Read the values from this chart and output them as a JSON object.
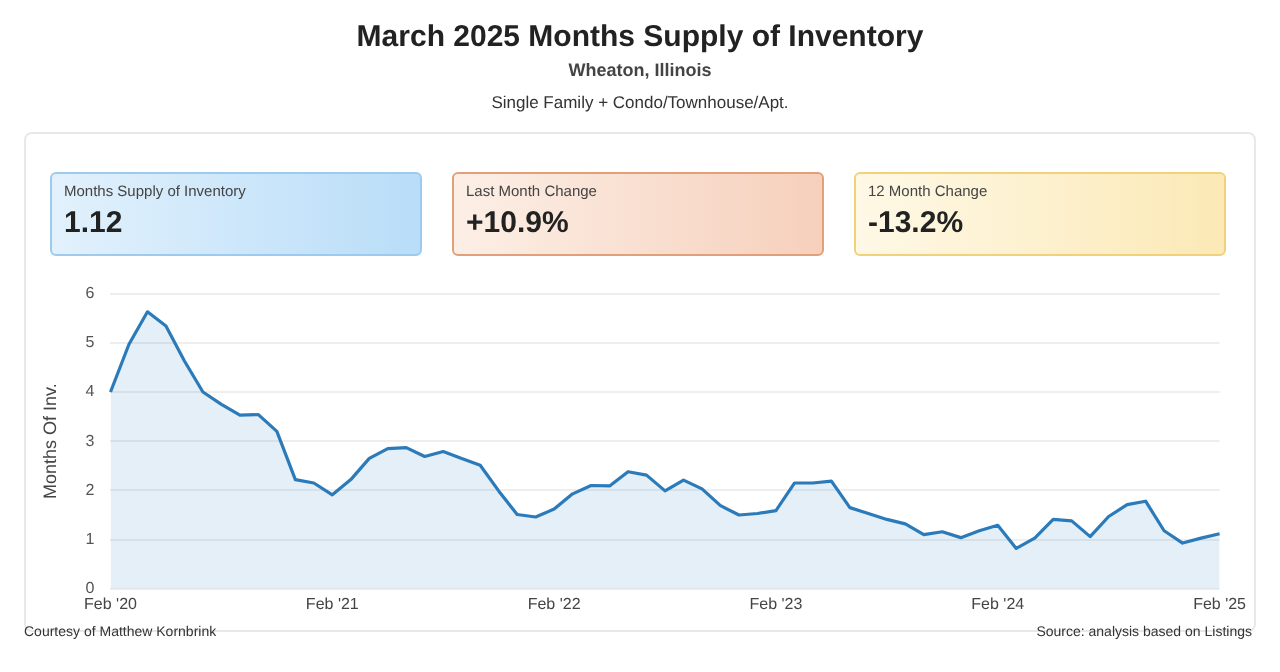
{
  "chart_data": {
    "type": "area",
    "title": "March 2025 Months Supply of Inventory",
    "subtitle": "Wheaton, Illinois",
    "ylabel": "Months Of Inv.",
    "annotations": [
      "Single Family + Condo/Townhouse/Apt.",
      "Months Supply of Inventory",
      "1.12",
      "Last Month Change",
      "+10.9%",
      "12 Month Change",
      "-13.2%",
      "Courtesy of Matthew Kornbrink",
      "Source: analysis based on Listings"
    ],
    "categories": [
      "Feb '20",
      null,
      null,
      null,
      null,
      null,
      null,
      null,
      null,
      null,
      null,
      null,
      "Feb '21",
      null,
      null,
      null,
      null,
      null,
      null,
      null,
      null,
      null,
      null,
      null,
      "Feb '22",
      null,
      null,
      null,
      null,
      null,
      null,
      null,
      null,
      null,
      null,
      null,
      "Feb '23",
      null,
      null,
      null,
      null,
      null,
      null,
      null,
      null,
      null,
      null,
      null,
      "Feb '24",
      null,
      null,
      null,
      null,
      null,
      null,
      null,
      null,
      null,
      null,
      null,
      "Feb '25"
    ],
    "series": [
      {
        "color": "#2b7bba",
        "values": [
          4.0,
          4.97,
          5.63,
          5.34,
          4.63,
          4.0,
          3.75,
          3.53,
          3.54,
          3.2,
          2.22,
          2.15,
          1.91,
          2.22,
          2.65,
          2.85,
          2.87,
          2.69,
          2.79,
          2.65,
          2.51,
          1.99,
          1.51,
          1.46,
          1.62,
          1.93,
          2.1,
          2.09,
          2.38,
          2.31,
          1.99,
          2.21,
          2.03,
          1.69,
          1.5,
          1.53,
          1.59,
          2.15,
          2.15,
          2.19,
          1.65,
          1.53,
          1.41,
          1.32,
          1.1,
          1.16,
          1.04,
          1.18,
          1.29,
          0.82,
          1.03,
          1.41,
          1.38,
          1.06,
          1.47,
          1.71,
          1.78,
          1.18,
          0.93,
          1.03,
          1.12
        ]
      }
    ],
    "ylim": [
      0,
      6
    ],
    "yticks": [
      0,
      1,
      2,
      3,
      4,
      5,
      6
    ],
    "grid": "y",
    "marker": "none",
    "line_style": "solid"
  }
}
